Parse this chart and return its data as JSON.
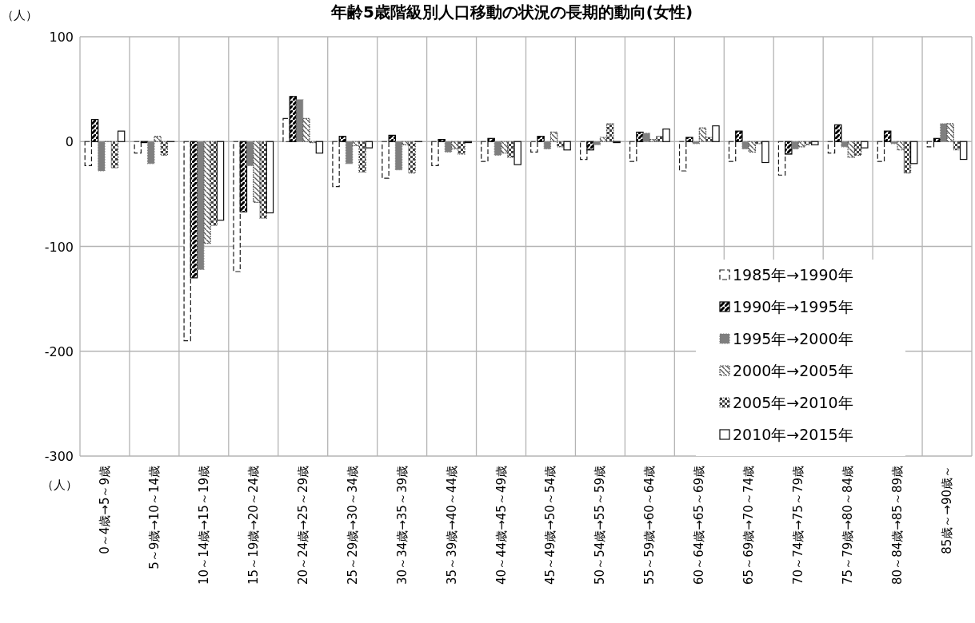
{
  "chart_data": {
    "type": "bar",
    "title": "年齢5歳階級別人口移動の状況の長期的動向(女性)",
    "annotations": [
      "（人）",
      "（人）"
    ],
    "categories": [
      "0～4歳→5～9歳",
      "5～9歳→10～14歳",
      "10～14歳→15～19歳",
      "15～19歳→20～24歳",
      "20～24歳→25～29歳",
      "25～29歳→30～34歳",
      "30～34歳→35～39歳",
      "35～39歳→40～44歳",
      "40～44歳→45～49歳",
      "45～49歳→50～54歳",
      "50～54歳→55～59歳",
      "55～59歳→60～64歳",
      "60～64歳→65～69歳",
      "65～69歳→70～74歳",
      "70～74歳→75～79歳",
      "75～79歳→80～84歳",
      "80～84歳→85～89歳",
      "85歳～→90歳～"
    ],
    "series": [
      {
        "name": "1985年→1990年",
        "color": "#1a1a1a",
        "values": [
          -23,
          -11,
          -190,
          -124,
          22,
          -43,
          -35,
          -23,
          -19,
          -10,
          -17,
          -19,
          -28,
          -19,
          -32,
          -11,
          -19,
          -5
        ]
      },
      {
        "name": "1990年→1995年",
        "color": "#000000",
        "values": [
          21,
          -1,
          -130,
          -67,
          43,
          5,
          6,
          2,
          3,
          5,
          -8,
          9,
          4,
          10,
          -12,
          16,
          10,
          3
        ]
      },
      {
        "name": "1995年→2000年",
        "color": "#7f7f7f",
        "values": [
          -28,
          -21,
          -122,
          -23,
          40,
          -21,
          -27,
          -10,
          -13,
          -7,
          -3,
          8,
          -2,
          -7,
          -7,
          -5,
          -2,
          17
        ]
      },
      {
        "name": "2000年→2005年",
        "color": "#595959",
        "values": [
          0,
          5,
          -97,
          -58,
          22,
          -4,
          -3,
          -7,
          -11,
          9,
          4,
          2,
          13,
          -10,
          -5,
          -15,
          -8,
          17
        ]
      },
      {
        "name": "2005年→2010年",
        "color": "#404040",
        "values": [
          -25,
          -13,
          -80,
          -73,
          -1,
          -29,
          -30,
          -12,
          -15,
          -5,
          17,
          5,
          4,
          -2,
          -3,
          -13,
          -30,
          -8
        ]
      },
      {
        "name": "2010年→2015年",
        "color": "#0d0d0d",
        "values": [
          10,
          0,
          -75,
          -68,
          -11,
          -6,
          0,
          -1,
          -22,
          -8,
          -1,
          12,
          15,
          -20,
          -3,
          -6,
          -21,
          -17
        ]
      }
    ],
    "ylim": [
      -300,
      100
    ],
    "yticks": [
      -300,
      -200,
      -100,
      0,
      100
    ],
    "grid": true,
    "legend": "bottom right"
  }
}
